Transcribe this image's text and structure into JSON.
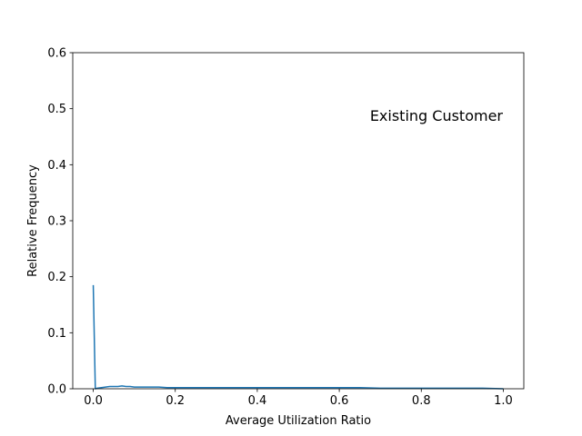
{
  "chart_data": {
    "type": "line",
    "title": "",
    "xlabel": "Average Utilization Ratio",
    "ylabel": "Relative Frequency",
    "xlim": [
      -0.05,
      1.05
    ],
    "ylim": [
      0,
      0.6
    ],
    "xticks": [
      0.0,
      0.2,
      0.4,
      0.6,
      0.8,
      1.0
    ],
    "xtick_labels": [
      "0.0",
      "0.2",
      "0.4",
      "0.6",
      "0.8",
      "1.0"
    ],
    "yticks": [
      0.0,
      0.1,
      0.2,
      0.3,
      0.4,
      0.5,
      0.6
    ],
    "ytick_labels": [
      "0.0",
      "0.1",
      "0.2",
      "0.3",
      "0.4",
      "0.5",
      "0.6"
    ],
    "grid": false,
    "annotation": "Existing Customer",
    "series": [
      {
        "name": "Existing Customer",
        "color": "#1f77b4",
        "x": [
          0.0,
          0.005,
          0.01,
          0.02,
          0.03,
          0.04,
          0.05,
          0.06,
          0.07,
          0.08,
          0.09,
          0.1,
          0.12,
          0.14,
          0.16,
          0.18,
          0.2,
          0.25,
          0.3,
          0.35,
          0.4,
          0.45,
          0.5,
          0.55,
          0.6,
          0.65,
          0.7,
          0.75,
          0.8,
          0.85,
          0.9,
          0.95,
          1.0
        ],
        "values": [
          0.185,
          0.0,
          0.001,
          0.002,
          0.003,
          0.004,
          0.004,
          0.004,
          0.005,
          0.004,
          0.004,
          0.003,
          0.003,
          0.003,
          0.003,
          0.002,
          0.002,
          0.002,
          0.002,
          0.002,
          0.002,
          0.002,
          0.002,
          0.002,
          0.002,
          0.002,
          0.001,
          0.001,
          0.001,
          0.001,
          0.001,
          0.001,
          0.0
        ]
      }
    ]
  }
}
